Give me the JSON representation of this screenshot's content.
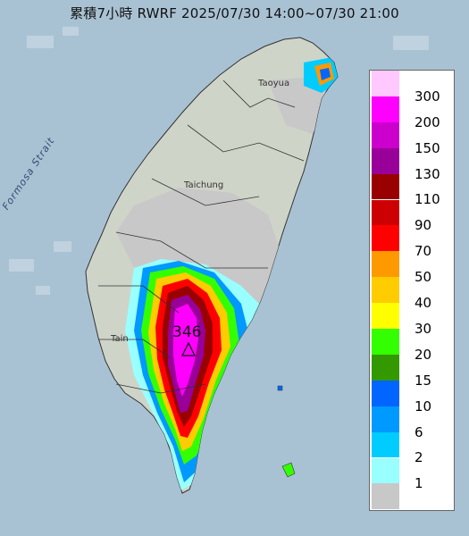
{
  "title": "累積7小時 RWRF 2025/07/30 14:00~07/30 21:00",
  "strait_label": "Formosa Strait",
  "city_labels": {
    "taoyuan": "Taoyua",
    "taichung": "Taichung",
    "tainan": "Tain"
  },
  "max_value": "346",
  "colors": {
    "sea": "#a9c2d3",
    "land": "#cfd4c8",
    "no_data": "#c8c8c8"
  },
  "legend": [
    {
      "label": "300",
      "color": "#ffc8ff"
    },
    {
      "label": "200",
      "color": "#ff00ff"
    },
    {
      "label": "150",
      "color": "#cc00cc"
    },
    {
      "label": "130",
      "color": "#990099"
    },
    {
      "label": "110",
      "color": "#990000"
    },
    {
      "label": "90",
      "color": "#cc0000"
    },
    {
      "label": "70",
      "color": "#ff0000"
    },
    {
      "label": "50",
      "color": "#ff9900"
    },
    {
      "label": "40",
      "color": "#ffcc00"
    },
    {
      "label": "30",
      "color": "#ffff00"
    },
    {
      "label": "20",
      "color": "#33ff00"
    },
    {
      "label": "15",
      "color": "#339900"
    },
    {
      "label": "10",
      "color": "#0066ff"
    },
    {
      "label": "6",
      "color": "#0099ff"
    },
    {
      "label": "2",
      "color": "#00ccff"
    },
    {
      "label": "1",
      "color": "#99ffff"
    },
    {
      "label": "",
      "color": "#c8c8c8"
    }
  ]
}
